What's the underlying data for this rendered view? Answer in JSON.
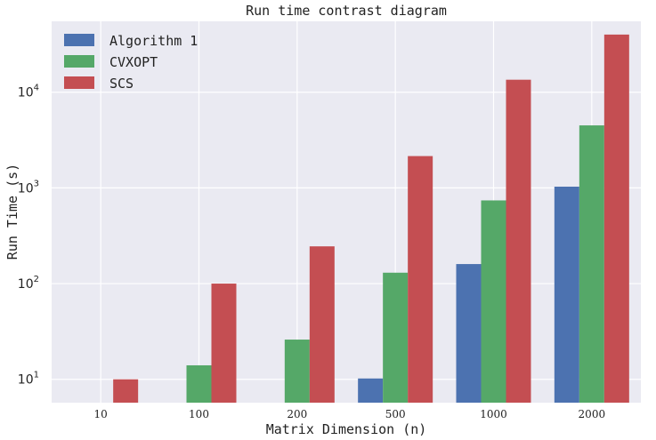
{
  "chart_data": {
    "type": "bar",
    "title": "Run time contrast diagram",
    "xlabel": "Matrix Dimension (n)",
    "ylabel": "Run Time (s)",
    "yscale": "log",
    "ylim": [
      5.7,
      55000
    ],
    "grid": true,
    "legend_position": "top-left",
    "categories": [
      "10",
      "100",
      "200",
      "500",
      "1000",
      "2000"
    ],
    "series": [
      {
        "name": "Algorithm 1",
        "color": "#4c72b0",
        "values": [
          null,
          null,
          null,
          10.2,
          160,
          1030
        ]
      },
      {
        "name": "CVXOPT",
        "color": "#55a868",
        "values": [
          null,
          14,
          26,
          130,
          740,
          4500
        ]
      },
      {
        "name": "SCS",
        "color": "#c44e52",
        "values": [
          10,
          100,
          245,
          2150,
          13500,
          40000
        ]
      }
    ],
    "yticks": [
      {
        "base": "10",
        "exp": "1",
        "value": 10
      },
      {
        "base": "10",
        "exp": "2",
        "value": 100
      },
      {
        "base": "10",
        "exp": "3",
        "value": 1000
      },
      {
        "base": "10",
        "exp": "4",
        "value": 10000
      }
    ]
  }
}
